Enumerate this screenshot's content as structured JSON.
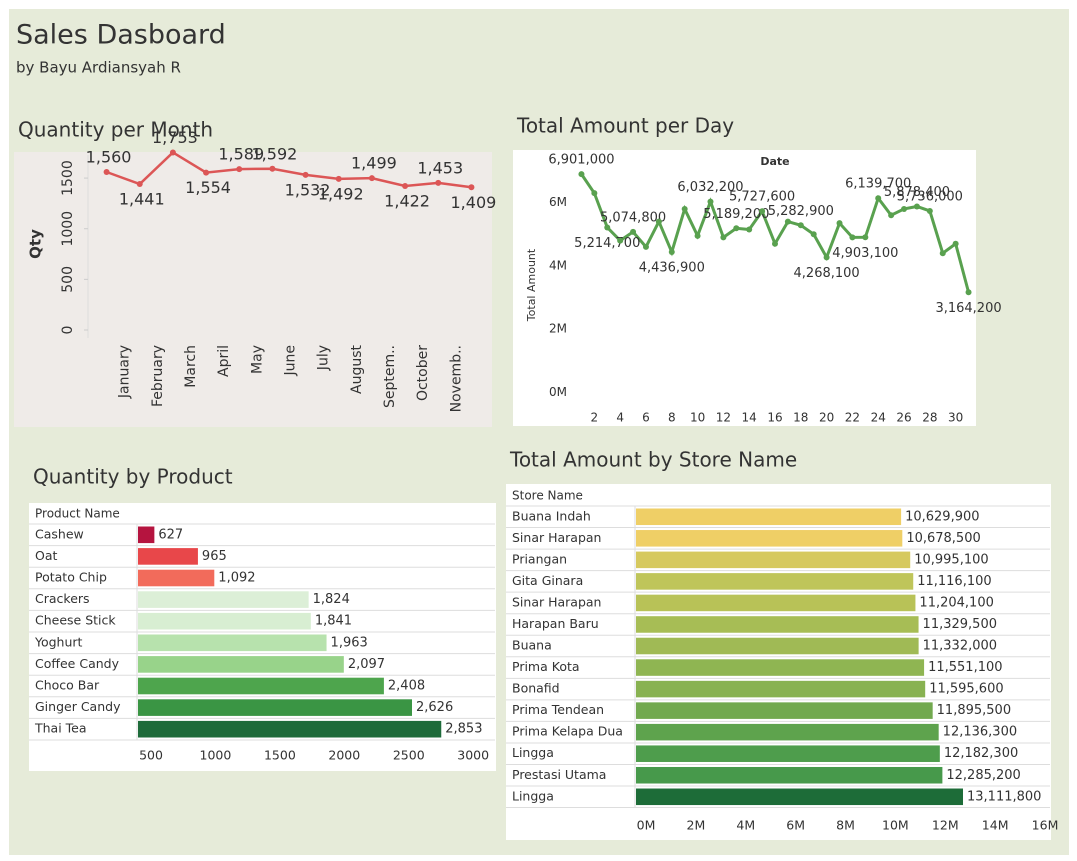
{
  "header": {
    "title": "Sales Dasboard",
    "subtitle": "by Bayu Ardiansyah R"
  },
  "chart_data": [
    {
      "type": "line",
      "title": "Quantity per Month",
      "y_label": "Qty",
      "color": "#dc5656",
      "categories": [
        "January",
        "February",
        "March",
        "April",
        "May",
        "June",
        "July",
        "August",
        "Septem..",
        "October",
        "Novemb..",
        null
      ],
      "values": [
        1560,
        1441,
        1753,
        1554,
        1589,
        1592,
        1532,
        1492,
        1499,
        1422,
        1453,
        1409
      ],
      "value_labels": [
        "1,560",
        "1,441",
        "1,753",
        "1,554",
        "1,589",
        "1,592",
        "1,532",
        "1,492",
        "1,499",
        "1,422",
        "1,453",
        "1,409"
      ],
      "ylim": [
        0,
        1800
      ],
      "yticks": [
        0,
        500,
        1000,
        1500
      ]
    },
    {
      "type": "line",
      "title": "Total Amount per Day",
      "x_label": "Date",
      "y_label": "Total Amount",
      "color": "#59a14f",
      "x": [
        1,
        2,
        3,
        4,
        5,
        6,
        7,
        8,
        9,
        10,
        11,
        12,
        13,
        14,
        15,
        16,
        17,
        18,
        19,
        20,
        21,
        22,
        23,
        24,
        25,
        26,
        27,
        28,
        29,
        30,
        31
      ],
      "values": [
        6901000,
        6300000,
        5214700,
        4800000,
        5074800,
        4600000,
        5400000,
        4436900,
        5800000,
        4950000,
        6032200,
        4900000,
        5189200,
        5150000,
        5727600,
        4700000,
        5400000,
        5282900,
        5000000,
        4268100,
        5350000,
        4900000,
        4903100,
        6139700,
        5600000,
        5800000,
        5878400,
        5736000,
        4400000,
        4700000,
        3164200
      ],
      "value_labels": [
        "6,901,000",
        null,
        "5,214,700",
        null,
        "5,074,800",
        null,
        null,
        "4,436,900",
        null,
        null,
        "6,032,200",
        null,
        "5,189,200",
        null,
        "5,727,600",
        null,
        null,
        "5,282,900",
        null,
        "4,268,100",
        null,
        null,
        "4,903,100",
        "6,139,700",
        null,
        null,
        "5,878,400",
        "5,736,000",
        null,
        null,
        "3,164,200"
      ],
      "xlim": [
        0.5,
        31.5
      ],
      "xticks": [
        2,
        4,
        6,
        8,
        10,
        12,
        14,
        16,
        18,
        20,
        22,
        24,
        26,
        28,
        30
      ],
      "ylim": [
        -400000,
        7000000
      ],
      "yticks": [
        {
          "value": 0,
          "label": "0M"
        },
        {
          "value": 2000000,
          "label": "2M"
        },
        {
          "value": 4000000,
          "label": "4M"
        },
        {
          "value": 6000000,
          "label": "6M"
        }
      ]
    },
    {
      "type": "bar",
      "orientation": "horizontal",
      "title": "Quantity by Product",
      "category_label": "Product Name",
      "categories": [
        "Cashew",
        "Oat",
        "Potato Chip",
        "Crackers",
        "Cheese Stick",
        "Yoghurt",
        "Coffee Candy",
        "Choco Bar",
        "Ginger Candy",
        "Thai Tea"
      ],
      "values": [
        627,
        965,
        1092,
        1824,
        1841,
        1963,
        2097,
        2408,
        2626,
        2853
      ],
      "value_labels": [
        "627",
        "965",
        "1,092",
        "1,824",
        "1,841",
        "1,963",
        "2,097",
        "2,408",
        "2,626",
        "2,853"
      ],
      "colors": [
        "#b5143f",
        "#e8474a",
        "#f26b5b",
        "#dcefd7",
        "#d8eed2",
        "#b7e2ad",
        "#98d38a",
        "#4ea54d",
        "#3a9544",
        "#1e6b3a"
      ],
      "xlim": [
        500,
        3270
      ],
      "xticks": [
        500,
        1000,
        1500,
        2000,
        2500,
        3000
      ]
    },
    {
      "type": "bar",
      "orientation": "horizontal",
      "title": "Total Amount by Store Name",
      "category_label": "Store Name",
      "categories": [
        "Buana Indah",
        "Sinar Harapan",
        "Priangan",
        "Gita Ginara",
        "Sinar Harapan",
        "Harapan Baru",
        "Buana",
        "Prima Kota",
        "Bonafid",
        "Prima Tendean",
        "Prima Kelapa Dua",
        "Lingga",
        "Prestasi Utama",
        "Lingga"
      ],
      "values": [
        10629900,
        10678500,
        10995100,
        11116100,
        11204100,
        11329500,
        11332000,
        11551100,
        11595600,
        11895500,
        12136300,
        12182300,
        12285200,
        13111800
      ],
      "value_labels": [
        "10,629,900",
        "10,678,500",
        "10,995,100",
        "11,116,100",
        "11,204,100",
        "11,329,500",
        "11,332,000",
        "11,551,100",
        "11,595,600",
        "11,895,500",
        "12,136,300",
        "12,182,300",
        "12,285,200",
        "13,111,800"
      ],
      "colors": [
        "#efcf66",
        "#efcf66",
        "#d6c95e",
        "#bfc55a",
        "#b8c257",
        "#a7bd55",
        "#a0ba55",
        "#8fb552",
        "#88b251",
        "#72a94f",
        "#5ea34d",
        "#4e9d4c",
        "#47994b",
        "#1d6c38"
      ],
      "xlim": [
        0,
        16600000
      ],
      "xticks": [
        {
          "value": 0,
          "label": "0M"
        },
        {
          "value": 2000000,
          "label": "2M"
        },
        {
          "value": 4000000,
          "label": "4M"
        },
        {
          "value": 6000000,
          "label": "6M"
        },
        {
          "value": 8000000,
          "label": "8M"
        },
        {
          "value": 10000000,
          "label": "10M"
        },
        {
          "value": 12000000,
          "label": "12M"
        },
        {
          "value": 14000000,
          "label": "14M"
        },
        {
          "value": 16000000,
          "label": "16M"
        }
      ]
    }
  ]
}
